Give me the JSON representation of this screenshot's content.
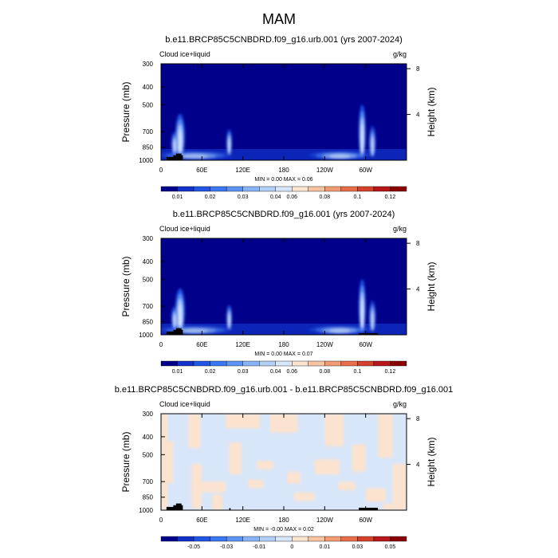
{
  "page_title": "MAM",
  "chart_data": [
    {
      "type": "heatmap",
      "title": "b.e11.BRCP85C5CNBDRD.f09_g16.urb.001 (yrs 2007-2024)",
      "left_label": "Cloud ice+liquid",
      "units": "g/kg",
      "ylabel": "Pressure (mb)",
      "ylabel_right": "Height (km)",
      "pressure_ticks": [
        300,
        400,
        500,
        700,
        850,
        1000
      ],
      "height_ticks": [
        8,
        4
      ],
      "x_ticks": [
        "0",
        "60E",
        "120E",
        "180",
        "120W",
        "60W"
      ],
      "x_tick_lon": [
        0,
        60,
        120,
        180,
        240,
        300
      ],
      "lon_range": [
        0,
        360
      ],
      "pressure_range": [
        300,
        1000
      ],
      "stats": "MIN =    0.00  MAX =    0.06",
      "colorbar_labels": [
        "0.01",
        "0.02",
        "0.03",
        "0.04",
        "0.06",
        "0.08",
        "0.1",
        "0.12"
      ],
      "colorbar_colors": [
        "#00008b",
        "#1133cc",
        "#2255e6",
        "#3a77f0",
        "#5d93f5",
        "#88b3f7",
        "#b2cff8",
        "#d8e6fa",
        "#fbe3cf",
        "#f7c3a0",
        "#f29c73",
        "#e96d48",
        "#d7402a",
        "#b8171a",
        "#8b0000"
      ],
      "features": [
        {
          "lon": 28,
          "p_top": 560,
          "p_bot": 965,
          "width": 7,
          "intensity": 0.75
        },
        {
          "lon": 20,
          "p_top": 700,
          "p_bot": 930,
          "width": 5,
          "intensity": 0.55
        },
        {
          "lon": 100,
          "p_top": 680,
          "p_bot": 935,
          "width": 4,
          "intensity": 0.7
        },
        {
          "lon": 295,
          "p_top": 500,
          "p_bot": 975,
          "width": 5,
          "intensity": 0.85
        },
        {
          "lon": 310,
          "p_top": 650,
          "p_bot": 960,
          "width": 5,
          "intensity": 0.5
        },
        {
          "lon": 262,
          "p_top": 895,
          "p_bot": 985,
          "width": 45,
          "intensity": 0.35
        },
        {
          "lon": 50,
          "p_top": 895,
          "p_bot": 985,
          "width": 55,
          "intensity": 0.3
        }
      ],
      "terrain": [
        {
          "lon0": 8,
          "lon1": 22,
          "p_top": 960
        },
        {
          "lon0": 18,
          "lon1": 32,
          "p_top": 940
        },
        {
          "lon0": 22,
          "lon1": 30,
          "p_top": 920
        }
      ]
    },
    {
      "type": "heatmap",
      "title": "b.e11.BRCP85C5CNBDRD.f09_g16.001 (yrs 2007-2024)",
      "left_label": "Cloud ice+liquid",
      "units": "g/kg",
      "ylabel": "Pressure (mb)",
      "ylabel_right": "Height (km)",
      "pressure_ticks": [
        300,
        400,
        500,
        700,
        850,
        1000
      ],
      "height_ticks": [
        8,
        4
      ],
      "x_ticks": [
        "0",
        "60E",
        "120E",
        "180",
        "120W",
        "60W"
      ],
      "x_tick_lon": [
        0,
        60,
        120,
        180,
        240,
        300
      ],
      "lon_range": [
        0,
        360
      ],
      "pressure_range": [
        300,
        1000
      ],
      "stats": "MIN =    0.00  MAX =    0.07",
      "colorbar_labels": [
        "0.01",
        "0.02",
        "0.03",
        "0.04",
        "0.06",
        "0.08",
        "0.1",
        "0.12"
      ],
      "colorbar_colors": [
        "#00008b",
        "#1133cc",
        "#2255e6",
        "#3a77f0",
        "#5d93f5",
        "#88b3f7",
        "#b2cff8",
        "#d8e6fa",
        "#fbe3cf",
        "#f7c3a0",
        "#f29c73",
        "#e96d48",
        "#d7402a",
        "#b8171a",
        "#8b0000"
      ],
      "features": [
        {
          "lon": 28,
          "p_top": 560,
          "p_bot": 965,
          "width": 7,
          "intensity": 0.8
        },
        {
          "lon": 20,
          "p_top": 700,
          "p_bot": 930,
          "width": 5,
          "intensity": 0.55
        },
        {
          "lon": 100,
          "p_top": 690,
          "p_bot": 935,
          "width": 4,
          "intensity": 0.7
        },
        {
          "lon": 295,
          "p_top": 500,
          "p_bot": 975,
          "width": 5,
          "intensity": 0.85
        },
        {
          "lon": 310,
          "p_top": 650,
          "p_bot": 960,
          "width": 5,
          "intensity": 0.5
        },
        {
          "lon": 262,
          "p_top": 895,
          "p_bot": 985,
          "width": 45,
          "intensity": 0.35
        },
        {
          "lon": 50,
          "p_top": 895,
          "p_bot": 985,
          "width": 55,
          "intensity": 0.3
        }
      ],
      "terrain": [
        {
          "lon0": 8,
          "lon1": 22,
          "p_top": 960
        },
        {
          "lon0": 18,
          "lon1": 32,
          "p_top": 940
        },
        {
          "lon0": 22,
          "lon1": 30,
          "p_top": 920
        },
        {
          "lon0": 290,
          "lon1": 318,
          "p_top": 980
        }
      ]
    },
    {
      "type": "heatmap",
      "title": "b.e11.BRCP85C5CNBDRD.f09_g16.urb.001 - b.e11.BRCP85C5CNBDRD.f09_g16.001",
      "left_label": "Cloud ice+liquid",
      "units": "g/kg",
      "ylabel": "Pressure (mb)",
      "ylabel_right": "Height (km)",
      "pressure_ticks": [
        300,
        400,
        500,
        700,
        850,
        1000
      ],
      "height_ticks": [
        8,
        4
      ],
      "x_ticks": [
        "0",
        "60E",
        "120E",
        "180",
        "120W",
        "60W"
      ],
      "x_tick_lon": [
        0,
        60,
        120,
        180,
        240,
        300
      ],
      "lon_range": [
        0,
        360
      ],
      "pressure_range": [
        300,
        1000
      ],
      "stats": "MIN =   -0.00  MAX =    0.02",
      "colorbar_labels": [
        "-0.05",
        "-0.03",
        "-0.01",
        "0",
        "0.01",
        "0.03",
        "0.05"
      ],
      "colorbar_colors": [
        "#00008b",
        "#1133cc",
        "#2255e6",
        "#3a77f0",
        "#5d93f5",
        "#88b3f7",
        "#b2cff8",
        "#d8e6fa",
        "#fbe3cf",
        "#f7c3a0",
        "#f29c73",
        "#e96d48",
        "#d7402a",
        "#b8171a",
        "#8b0000"
      ],
      "background_color": "#d8e6fa",
      "patch_color": "#fbe3cf",
      "patches": [
        {
          "lon0": 0,
          "lon1": 10,
          "p0": 300,
          "p1": 1000
        },
        {
          "lon0": 10,
          "lon1": 18,
          "p0": 420,
          "p1": 720
        },
        {
          "lon0": 40,
          "lon1": 58,
          "p0": 300,
          "p1": 460
        },
        {
          "lon0": 45,
          "lon1": 60,
          "p0": 560,
          "p1": 980
        },
        {
          "lon0": 60,
          "lon1": 95,
          "p0": 700,
          "p1": 800
        },
        {
          "lon0": 75,
          "lon1": 90,
          "p0": 820,
          "p1": 1000
        },
        {
          "lon0": 95,
          "lon1": 145,
          "p0": 300,
          "p1": 360
        },
        {
          "lon0": 100,
          "lon1": 118,
          "p0": 430,
          "p1": 640
        },
        {
          "lon0": 128,
          "lon1": 150,
          "p0": 680,
          "p1": 760
        },
        {
          "lon0": 140,
          "lon1": 165,
          "p0": 540,
          "p1": 600
        },
        {
          "lon0": 160,
          "lon1": 200,
          "p0": 300,
          "p1": 380
        },
        {
          "lon0": 185,
          "lon1": 205,
          "p0": 620,
          "p1": 720
        },
        {
          "lon0": 195,
          "lon1": 225,
          "p0": 800,
          "p1": 890
        },
        {
          "lon0": 225,
          "lon1": 262,
          "p0": 530,
          "p1": 640
        },
        {
          "lon0": 240,
          "lon1": 268,
          "p0": 300,
          "p1": 450
        },
        {
          "lon0": 260,
          "lon1": 285,
          "p0": 700,
          "p1": 780
        },
        {
          "lon0": 280,
          "lon1": 300,
          "p0": 440,
          "p1": 620
        },
        {
          "lon0": 300,
          "lon1": 330,
          "p0": 760,
          "p1": 900
        },
        {
          "lon0": 318,
          "lon1": 340,
          "p0": 300,
          "p1": 520
        },
        {
          "lon0": 340,
          "lon1": 360,
          "p0": 560,
          "p1": 1000
        },
        {
          "lon0": 325,
          "lon1": 350,
          "p0": 920,
          "p1": 1000
        }
      ],
      "terrain": [
        {
          "lon0": 8,
          "lon1": 22,
          "p_top": 960
        },
        {
          "lon0": 18,
          "lon1": 32,
          "p_top": 940
        },
        {
          "lon0": 22,
          "lon1": 30,
          "p_top": 920
        },
        {
          "lon0": 100,
          "lon1": 102,
          "p_top": 975
        },
        {
          "lon0": 290,
          "lon1": 318,
          "p_top": 970
        }
      ]
    }
  ]
}
